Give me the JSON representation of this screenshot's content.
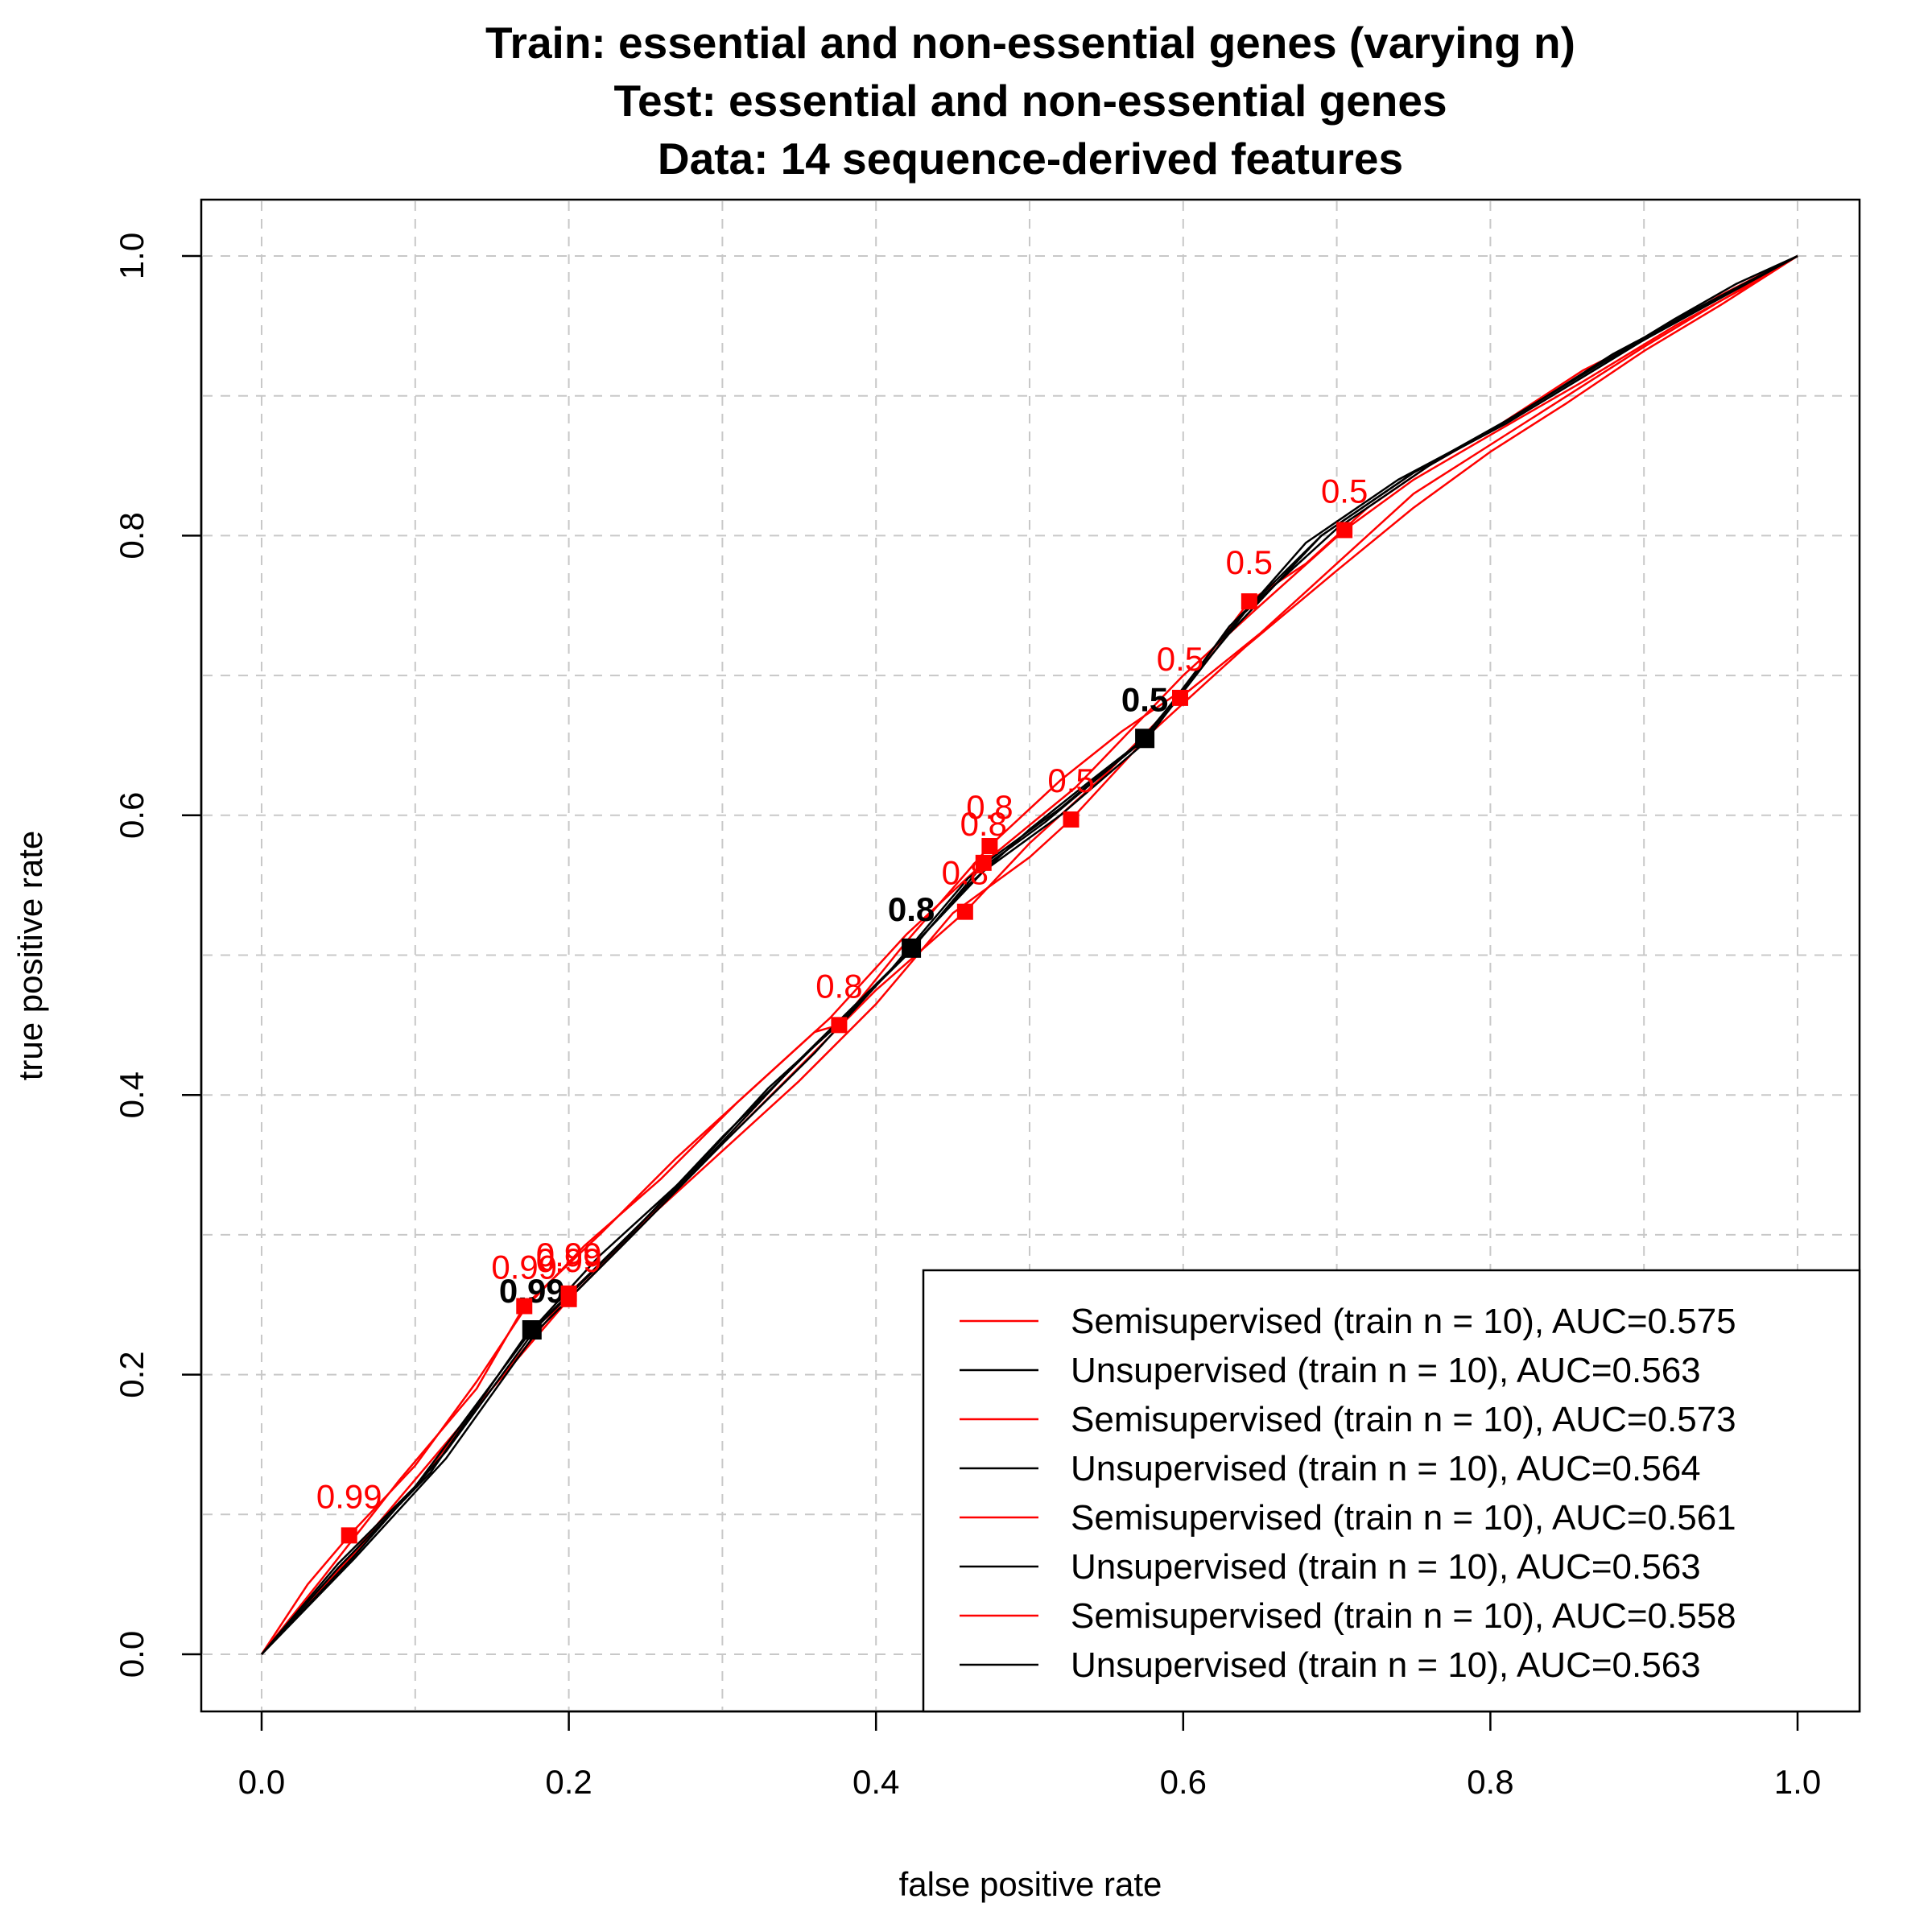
{
  "chart_data": {
    "type": "line",
    "title": [
      "Train: essential and non-essential genes (varying n)",
      "Test: essential and non-essential genes",
      "Data: 14 sequence-derived features"
    ],
    "xlabel": "false positive rate",
    "ylabel": "true positive rate",
    "xlim": [
      0.0,
      1.0
    ],
    "ylim": [
      0.0,
      1.0
    ],
    "xticks": [
      "0.0",
      "0.2",
      "0.4",
      "0.6",
      "0.8",
      "1.0"
    ],
    "yticks": [
      "0.0",
      "0.2",
      "0.4",
      "0.6",
      "0.8",
      "1.0"
    ],
    "grid": true,
    "legend_position": "bottom-right",
    "colors": {
      "semisupervised": "#ff0000",
      "unsupervised": "#000000",
      "grid": "#c8c8c8"
    },
    "series": [
      {
        "name": "Semisupervised (train n = 10), AUC=0.575",
        "color": "#ff0000",
        "points": [
          [
            0,
            0
          ],
          [
            0.03,
            0.05
          ],
          [
            0.057,
            0.085
          ],
          [
            0.1,
            0.135
          ],
          [
            0.14,
            0.195
          ],
          [
            0.172,
            0.248
          ],
          [
            0.21,
            0.292
          ],
          [
            0.26,
            0.34
          ],
          [
            0.31,
            0.395
          ],
          [
            0.36,
            0.445
          ],
          [
            0.376,
            0.45
          ],
          [
            0.42,
            0.51
          ],
          [
            0.474,
            0.578
          ],
          [
            0.52,
            0.625
          ],
          [
            0.56,
            0.66
          ],
          [
            0.6,
            0.69
          ],
          [
            0.643,
            0.753
          ],
          [
            0.68,
            0.78
          ],
          [
            0.72,
            0.82
          ],
          [
            0.76,
            0.85
          ],
          [
            0.8,
            0.875
          ],
          [
            0.86,
            0.918
          ],
          [
            0.9,
            0.94
          ],
          [
            0.95,
            0.972
          ],
          [
            1,
            1
          ]
        ],
        "thresholds": [
          {
            "x": 0.057,
            "y": 0.085,
            "label": "0.99"
          },
          {
            "x": 0.474,
            "y": 0.578,
            "label": "0.8"
          },
          {
            "x": 0.643,
            "y": 0.753,
            "label": "0.5"
          }
        ]
      },
      {
        "name": "Unsupervised (train n = 10), AUC=0.563",
        "color": "#000000",
        "points": [
          [
            0,
            0
          ],
          [
            0.05,
            0.065
          ],
          [
            0.1,
            0.12
          ],
          [
            0.176,
            0.232
          ],
          [
            0.22,
            0.285
          ],
          [
            0.28,
            0.345
          ],
          [
            0.33,
            0.405
          ],
          [
            0.38,
            0.455
          ],
          [
            0.423,
            0.505
          ],
          [
            0.46,
            0.55
          ],
          [
            0.5,
            0.59
          ],
          [
            0.54,
            0.625
          ],
          [
            0.575,
            0.655
          ],
          [
            0.62,
            0.72
          ],
          [
            0.68,
            0.795
          ],
          [
            0.74,
            0.84
          ],
          [
            0.8,
            0.875
          ],
          [
            0.86,
            0.915
          ],
          [
            0.92,
            0.955
          ],
          [
            0.96,
            0.98
          ],
          [
            1,
            1
          ]
        ],
        "thresholds": [
          {
            "x": 0.176,
            "y": 0.232,
            "label": "0.99"
          },
          {
            "x": 0.423,
            "y": 0.505,
            "label": "0.8"
          },
          {
            "x": 0.575,
            "y": 0.655,
            "label": "0.5"
          }
        ]
      },
      {
        "name": "Semisupervised (train n = 10), AUC=0.573",
        "color": "#ff0000",
        "points": [
          [
            0,
            0
          ],
          [
            0.04,
            0.055
          ],
          [
            0.09,
            0.125
          ],
          [
            0.14,
            0.19
          ],
          [
            0.171,
            0.249
          ],
          [
            0.22,
            0.3
          ],
          [
            0.27,
            0.355
          ],
          [
            0.32,
            0.405
          ],
          [
            0.37,
            0.455
          ],
          [
            0.42,
            0.515
          ],
          [
            0.47,
            0.566
          ],
          [
            0.53,
            0.62
          ],
          [
            0.6,
            0.7
          ],
          [
            0.65,
            0.75
          ],
          [
            0.705,
            0.804
          ],
          [
            0.75,
            0.84
          ],
          [
            0.8,
            0.872
          ],
          [
            0.86,
            0.91
          ],
          [
            0.92,
            0.95
          ],
          [
            0.97,
            0.98
          ],
          [
            1,
            1
          ]
        ],
        "thresholds": [
          {
            "x": 0.171,
            "y": 0.249,
            "label": "0.99"
          },
          {
            "x": 0.47,
            "y": 0.566,
            "label": "0.8"
          },
          {
            "x": 0.705,
            "y": 0.804,
            "label": "0.5"
          }
        ]
      },
      {
        "name": "Unsupervised (train n = 10), AUC=0.564",
        "color": "#000000",
        "points": [
          [
            0,
            0
          ],
          [
            0.06,
            0.07
          ],
          [
            0.12,
            0.145
          ],
          [
            0.18,
            0.235
          ],
          [
            0.24,
            0.3
          ],
          [
            0.3,
            0.37
          ],
          [
            0.36,
            0.435
          ],
          [
            0.42,
            0.5
          ],
          [
            0.47,
            0.565
          ],
          [
            0.52,
            0.605
          ],
          [
            0.58,
            0.66
          ],
          [
            0.64,
            0.745
          ],
          [
            0.7,
            0.805
          ],
          [
            0.76,
            0.85
          ],
          [
            0.82,
            0.888
          ],
          [
            0.88,
            0.93
          ],
          [
            0.94,
            0.965
          ],
          [
            1,
            1
          ]
        ],
        "thresholds": []
      },
      {
        "name": "Semisupervised (train n = 10), AUC=0.561",
        "color": "#ff0000",
        "points": [
          [
            0,
            0
          ],
          [
            0.05,
            0.06
          ],
          [
            0.1,
            0.12
          ],
          [
            0.15,
            0.19
          ],
          [
            0.2,
            0.254
          ],
          [
            0.25,
            0.31
          ],
          [
            0.3,
            0.365
          ],
          [
            0.35,
            0.42
          ],
          [
            0.4,
            0.475
          ],
          [
            0.458,
            0.531
          ],
          [
            0.5,
            0.58
          ],
          [
            0.55,
            0.63
          ],
          [
            0.598,
            0.684
          ],
          [
            0.65,
            0.73
          ],
          [
            0.7,
            0.78
          ],
          [
            0.75,
            0.83
          ],
          [
            0.8,
            0.865
          ],
          [
            0.85,
            0.9
          ],
          [
            0.9,
            0.935
          ],
          [
            0.95,
            0.968
          ],
          [
            1,
            1
          ]
        ],
        "thresholds": [
          {
            "x": 0.2,
            "y": 0.254,
            "label": "0.99"
          },
          {
            "x": 0.458,
            "y": 0.531,
            "label": "0.8"
          },
          {
            "x": 0.598,
            "y": 0.684,
            "label": "0.5"
          }
        ]
      },
      {
        "name": "Unsupervised (train n = 10), AUC=0.563",
        "color": "#000000",
        "points": [
          [
            0,
            0
          ],
          [
            0.05,
            0.062
          ],
          [
            0.11,
            0.13
          ],
          [
            0.17,
            0.225
          ],
          [
            0.23,
            0.29
          ],
          [
            0.29,
            0.355
          ],
          [
            0.35,
            0.425
          ],
          [
            0.41,
            0.49
          ],
          [
            0.46,
            0.555
          ],
          [
            0.51,
            0.595
          ],
          [
            0.57,
            0.65
          ],
          [
            0.63,
            0.73
          ],
          [
            0.69,
            0.8
          ],
          [
            0.75,
            0.845
          ],
          [
            0.81,
            0.88
          ],
          [
            0.87,
            0.92
          ],
          [
            0.93,
            0.96
          ],
          [
            1,
            1
          ]
        ],
        "thresholds": []
      },
      {
        "name": "Semisupervised (train n = 10), AUC=0.558",
        "color": "#ff0000",
        "points": [
          [
            0,
            0
          ],
          [
            0.05,
            0.06
          ],
          [
            0.1,
            0.125
          ],
          [
            0.15,
            0.19
          ],
          [
            0.2,
            0.258
          ],
          [
            0.25,
            0.31
          ],
          [
            0.3,
            0.36
          ],
          [
            0.35,
            0.41
          ],
          [
            0.4,
            0.465
          ],
          [
            0.45,
            0.53
          ],
          [
            0.5,
            0.57
          ],
          [
            0.527,
            0.597
          ],
          [
            0.58,
            0.66
          ],
          [
            0.64,
            0.72
          ],
          [
            0.7,
            0.775
          ],
          [
            0.75,
            0.82
          ],
          [
            0.8,
            0.86
          ],
          [
            0.85,
            0.895
          ],
          [
            0.9,
            0.932
          ],
          [
            0.95,
            0.965
          ],
          [
            1,
            1
          ]
        ],
        "thresholds": [
          {
            "x": 0.2,
            "y": 0.258,
            "label": "0.99"
          },
          {
            "x": 0.376,
            "y": 0.45,
            "label": "0.8"
          },
          {
            "x": 0.527,
            "y": 0.597,
            "label": "0.5"
          }
        ]
      },
      {
        "name": "Unsupervised (train n = 10), AUC=0.563",
        "color": "#000000",
        "points": [
          [
            0,
            0
          ],
          [
            0.06,
            0.068
          ],
          [
            0.12,
            0.14
          ],
          [
            0.18,
            0.232
          ],
          [
            0.24,
            0.298
          ],
          [
            0.3,
            0.365
          ],
          [
            0.36,
            0.43
          ],
          [
            0.42,
            0.502
          ],
          [
            0.47,
            0.56
          ],
          [
            0.52,
            0.6
          ],
          [
            0.575,
            0.652
          ],
          [
            0.63,
            0.735
          ],
          [
            0.69,
            0.8
          ],
          [
            0.75,
            0.845
          ],
          [
            0.81,
            0.882
          ],
          [
            0.87,
            0.922
          ],
          [
            0.93,
            0.958
          ],
          [
            1,
            1
          ]
        ],
        "thresholds": []
      }
    ]
  }
}
